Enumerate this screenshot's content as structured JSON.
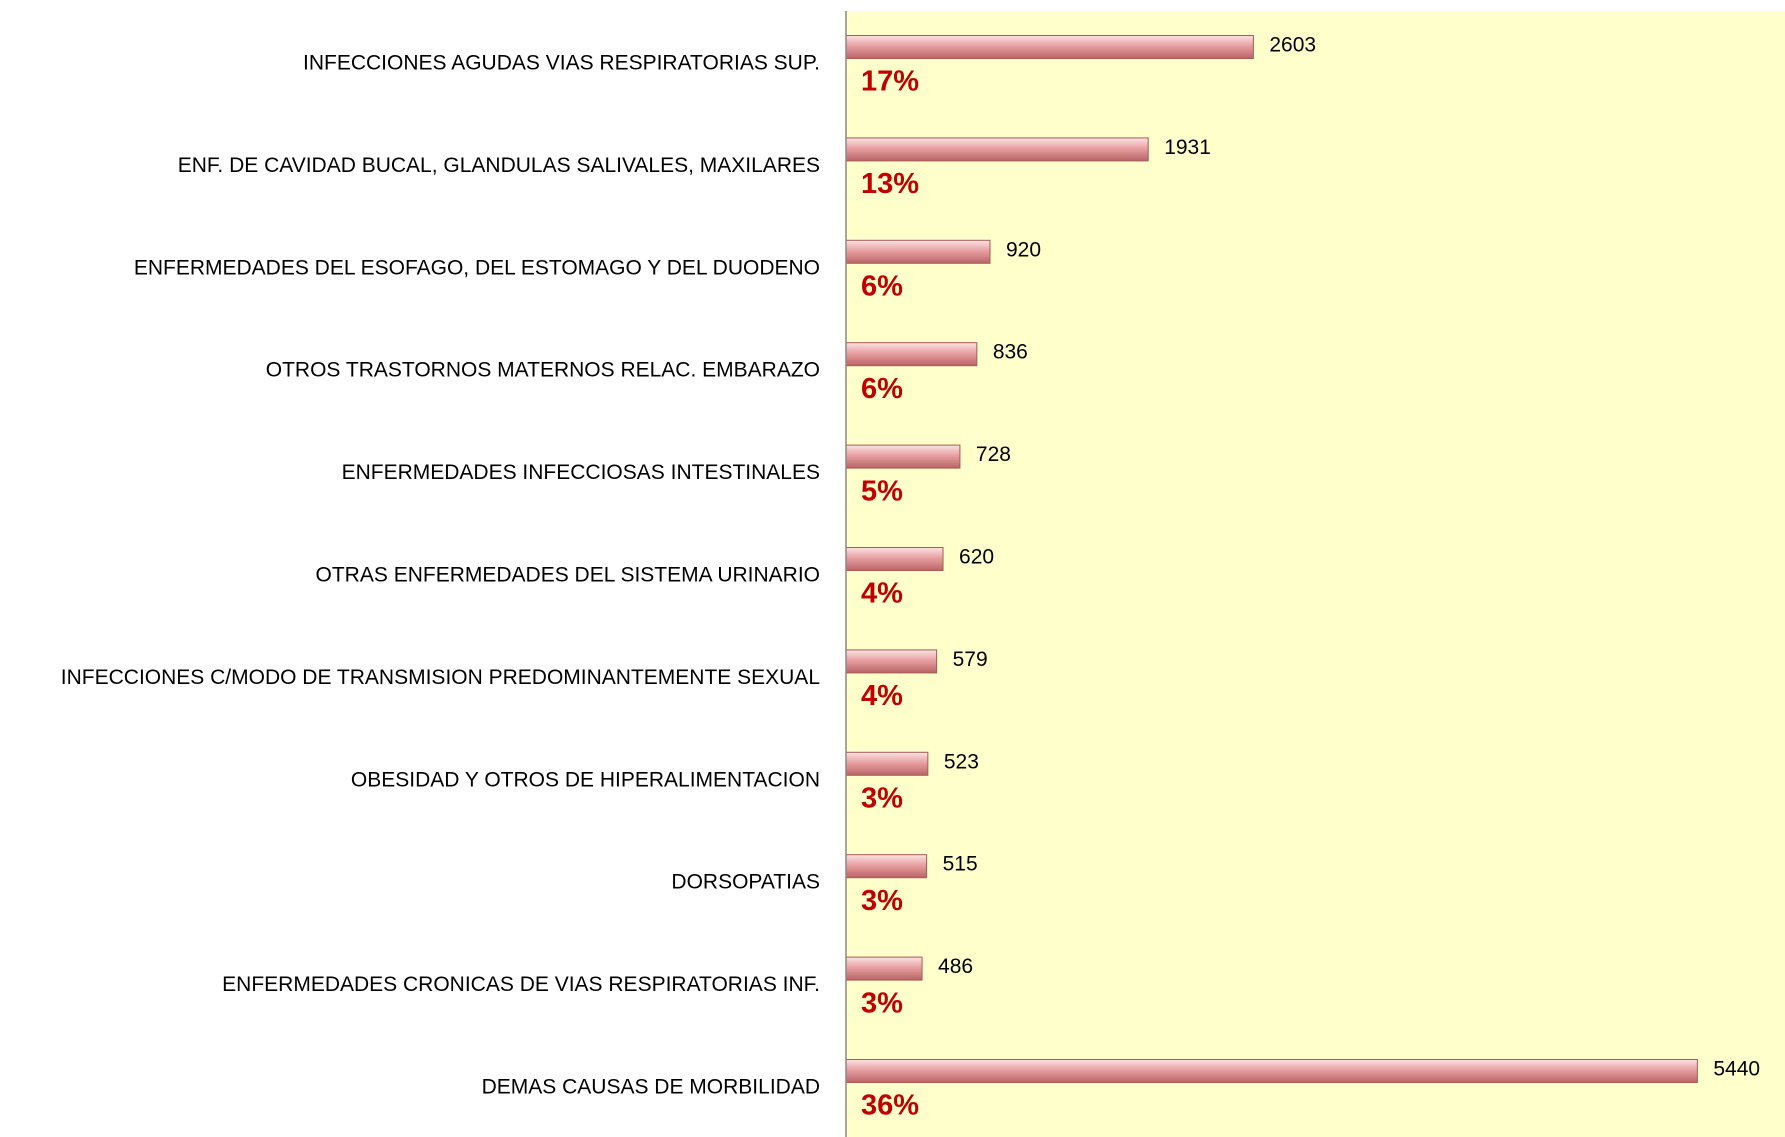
{
  "chart_data": {
    "type": "barh",
    "categories": [
      "INFECCIONES AGUDAS VIAS RESPIRATORIAS SUP.",
      "ENF. DE CAVIDAD BUCAL, GLANDULAS SALIVALES, MAXILARES",
      "ENFERMEDADES DEL ESOFAGO, DEL ESTOMAGO Y DEL DUODENO",
      "OTROS TRASTORNOS MATERNOS RELAC. EMBARAZO",
      "ENFERMEDADES INFECCIOSAS INTESTINALES",
      "OTRAS ENFERMEDADES DEL SISTEMA URINARIO",
      "INFECCIONES C/MODO DE TRANSMISION PREDOMINANTEMENTE SEXUAL",
      "OBESIDAD Y OTROS DE HIPERALIMENTACION",
      "DORSOPATIAS",
      "ENFERMEDADES CRONICAS DE VIAS RESPIRATORIAS INF.",
      "DEMAS CAUSAS DE MORBILIDAD"
    ],
    "values": [
      2603,
      1931,
      920,
      836,
      728,
      620,
      579,
      523,
      515,
      486,
      5440
    ],
    "percent_labels": [
      "17%",
      "13%",
      "6%",
      "6%",
      "5%",
      "4%",
      "4%",
      "3%",
      "3%",
      "3%",
      "36%"
    ],
    "color": "#e8a0a2",
    "plot_background": "#ffffcc",
    "xlim": [
      0,
      6000
    ]
  }
}
